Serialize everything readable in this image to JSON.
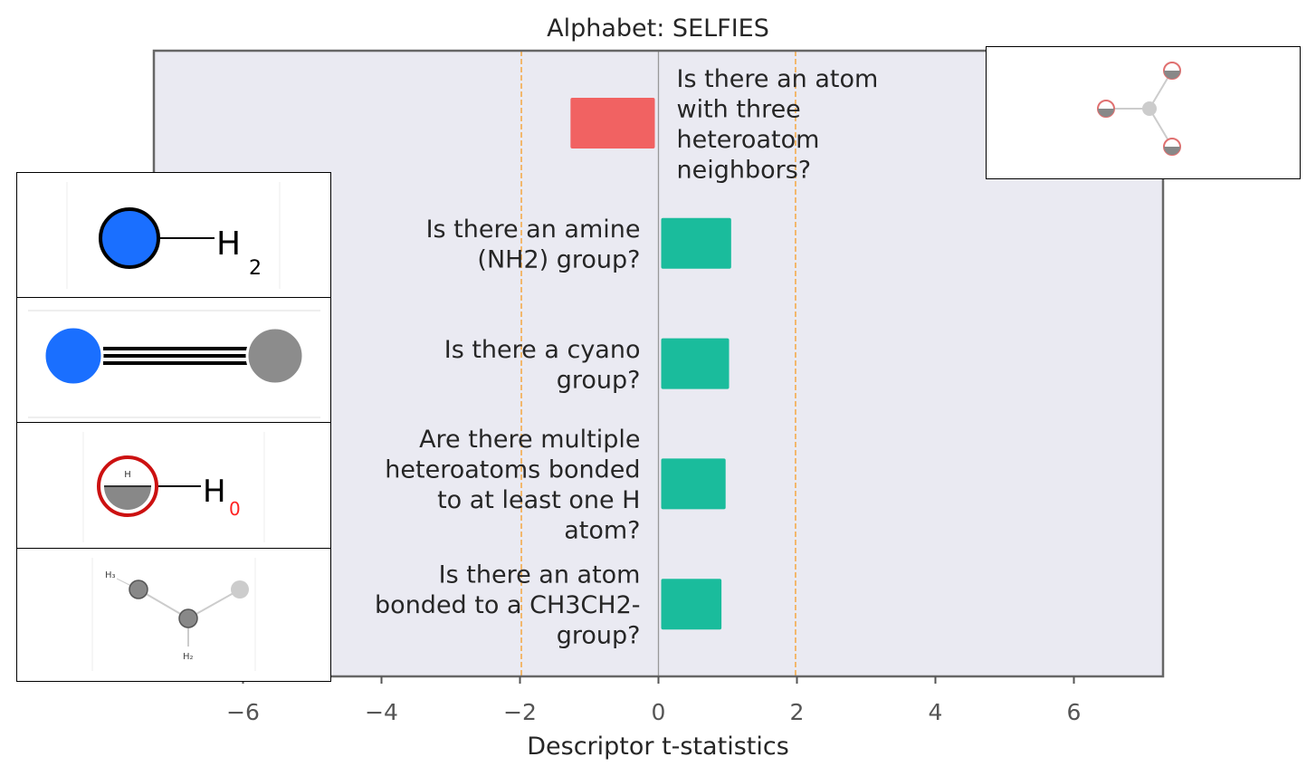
{
  "chart_data": {
    "type": "bar",
    "orientation": "horizontal",
    "title": "Alphabet: SELFIES",
    "xlabel": "Descriptor t-statistics",
    "ylabel": "",
    "xlim": [
      -7.5,
      7.3
    ],
    "xticks": [
      {
        "value": -6,
        "label": "−6"
      },
      {
        "value": -4,
        "label": "−4"
      },
      {
        "value": -2,
        "label": "−2"
      },
      {
        "value": 0,
        "label": "0"
      },
      {
        "value": 2,
        "label": "2"
      },
      {
        "value": 4,
        "label": "4"
      },
      {
        "value": 6,
        "label": "6"
      }
    ],
    "significance_lines": [
      -1.98,
      1.98
    ],
    "bars": [
      {
        "label_lines": [
          "Is there an atom",
          "with three",
          "heteroatom",
          "neighbors?"
        ],
        "value": -1.27,
        "color": "#f16262"
      },
      {
        "label_lines": [
          "Is there an amine",
          "(NH2) group?"
        ],
        "value": 1.05,
        "color": "#1abc9c"
      },
      {
        "label_lines": [
          "Is there a cyano",
          "group?"
        ],
        "value": 1.02,
        "color": "#1abc9c"
      },
      {
        "label_lines": [
          "Are there multiple",
          "heteroatoms bonded",
          "to at least one H",
          "atom?"
        ],
        "value": 0.97,
        "color": "#1abc9c"
      },
      {
        "label_lines": [
          "Is there an atom",
          "bonded to a CH3CH2-",
          "group?"
        ],
        "value": 0.91,
        "color": "#1abc9c"
      }
    ],
    "grid": false,
    "colors": {
      "background": "#eaeaf2",
      "negative": "#f16262",
      "positive": "#1abc9c",
      "threshold": "#f5a742"
    }
  },
  "insets": [
    {
      "id": "three-heteroatom",
      "molecule_labels": []
    },
    {
      "id": "amine",
      "molecule_labels": [
        "H",
        "2"
      ]
    },
    {
      "id": "cyano",
      "molecule_labels": []
    },
    {
      "id": "multiple-heteroatoms",
      "molecule_labels": [
        "H",
        "H",
        "0"
      ]
    },
    {
      "id": "ethyl",
      "molecule_labels": [
        "H₃",
        "H₂"
      ]
    }
  ]
}
